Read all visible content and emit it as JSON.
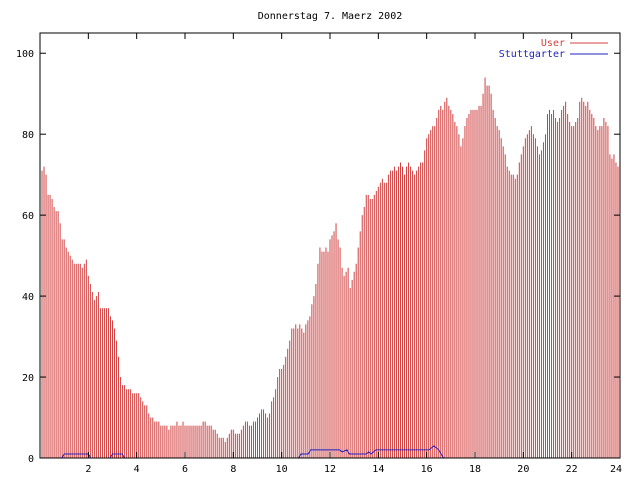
{
  "chart_data": {
    "type": "bar",
    "title": "Donnerstag 7. Maerz 2002",
    "xlabel": "",
    "ylabel": "",
    "xlim": [
      0,
      24
    ],
    "ylim": [
      0,
      105
    ],
    "x_ticks": [
      2,
      4,
      6,
      8,
      10,
      12,
      14,
      16,
      18,
      20,
      22,
      24
    ],
    "y_ticks": [
      0,
      20,
      40,
      60,
      80,
      100
    ],
    "grid": false,
    "legend_position": "top-right",
    "bin_hours": 0.0833333,
    "series": [
      {
        "name": "User",
        "style": "impulses",
        "color": "#d04040",
        "values": [
          75,
          71,
          72,
          70,
          65,
          65,
          64,
          62,
          61,
          61,
          58,
          54,
          54,
          52,
          51,
          50,
          49,
          48,
          48,
          48,
          48,
          47,
          48,
          49,
          45,
          43,
          41,
          39,
          40,
          41,
          37,
          37,
          37,
          37,
          37,
          35,
          34,
          32,
          29,
          25,
          20,
          18,
          18,
          17,
          17,
          17,
          16,
          16,
          16,
          16,
          15,
          14,
          13,
          13,
          11,
          10,
          10,
          9,
          9,
          9,
          8,
          8,
          8,
          8,
          7,
          8,
          8,
          8,
          9,
          8,
          8,
          9,
          8,
          8,
          8,
          8,
          8,
          8,
          8,
          8,
          8,
          9,
          9,
          8,
          8,
          8,
          7,
          7,
          6,
          5,
          5,
          5,
          4,
          5,
          6,
          7,
          7,
          6,
          6,
          6,
          7,
          8,
          9,
          9,
          8,
          8,
          9,
          9,
          10,
          11,
          12,
          12,
          11,
          10,
          11,
          14,
          15,
          17,
          20,
          22,
          22,
          23,
          25,
          27,
          29,
          32,
          32,
          33,
          32,
          33,
          32,
          31,
          33,
          34,
          35,
          38,
          40,
          43,
          48,
          52,
          51,
          51,
          52,
          51,
          54,
          55,
          56,
          58,
          54,
          52,
          47,
          45,
          46,
          47,
          42,
          44,
          46,
          48,
          52,
          56,
          60,
          62,
          65,
          65,
          64,
          64,
          65,
          66,
          67,
          68,
          69,
          68,
          68,
          70,
          71,
          71,
          72,
          71,
          72,
          73,
          72,
          70,
          72,
          73,
          72,
          71,
          70,
          71,
          72,
          73,
          73,
          76,
          79,
          80,
          81,
          82,
          82,
          84,
          86,
          87,
          86,
          88,
          89,
          87,
          86,
          85,
          83,
          82,
          80,
          77,
          79,
          82,
          84,
          85,
          86,
          86,
          86,
          86,
          87,
          87,
          90,
          94,
          92,
          92,
          90,
          86,
          84,
          82,
          81,
          79,
          77,
          75,
          72,
          71,
          70,
          70,
          69,
          70,
          73,
          75,
          77,
          79,
          80,
          81,
          82,
          80,
          79,
          77,
          75,
          76,
          78,
          80,
          85,
          86,
          85,
          86,
          84,
          83,
          84,
          86,
          87,
          88,
          85,
          83,
          82,
          82,
          83,
          84,
          88,
          89,
          88,
          87,
          88,
          86,
          85,
          84,
          82,
          81,
          82,
          82,
          84,
          83,
          82,
          75,
          74,
          75,
          73,
          72,
          77
        ]
      },
      {
        "name": "Stuttgarter",
        "style": "line",
        "color": "#2020c0",
        "points": [
          [
            0,
            0
          ],
          [
            0.9,
            0
          ],
          [
            1.0,
            1
          ],
          [
            2.0,
            1
          ],
          [
            2.1,
            0
          ],
          [
            2.9,
            0
          ],
          [
            3.0,
            1
          ],
          [
            3.4,
            1
          ],
          [
            3.5,
            0
          ],
          [
            10.7,
            0
          ],
          [
            10.8,
            1
          ],
          [
            11.1,
            1
          ],
          [
            11.2,
            2
          ],
          [
            12.4,
            2
          ],
          [
            12.5,
            1.5
          ],
          [
            12.7,
            2
          ],
          [
            12.8,
            1
          ],
          [
            13.5,
            1
          ],
          [
            13.6,
            1.5
          ],
          [
            13.7,
            1
          ],
          [
            13.9,
            2
          ],
          [
            16.0,
            2
          ],
          [
            16.1,
            2
          ],
          [
            16.2,
            2.5
          ],
          [
            16.3,
            3
          ],
          [
            16.4,
            2.5
          ],
          [
            16.5,
            2
          ],
          [
            16.6,
            1
          ],
          [
            16.7,
            0
          ],
          [
            24,
            0
          ]
        ]
      }
    ]
  }
}
